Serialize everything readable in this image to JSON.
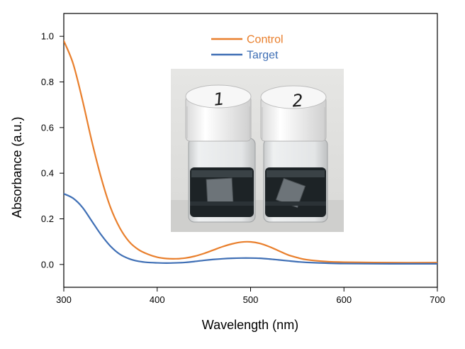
{
  "chart_data": {
    "type": "line",
    "xlabel": "Wavelength (nm)",
    "ylabel": "Absorbance (a.u.)",
    "xlim": [
      300,
      700
    ],
    "ylim": [
      -0.1,
      1.1
    ],
    "x_ticks": [
      "300",
      "400",
      "500",
      "600",
      "700"
    ],
    "y_ticks": [
      "0.0",
      "0.2",
      "0.4",
      "0.6",
      "0.8",
      "1.0"
    ],
    "grid": false,
    "legend_position": "top-center",
    "series": [
      {
        "name": "Control",
        "color": "#e97f2c",
        "x": [
          300,
          310,
          320,
          330,
          340,
          350,
          360,
          370,
          380,
          390,
          400,
          410,
          420,
          430,
          440,
          450,
          460,
          470,
          480,
          490,
          500,
          510,
          520,
          530,
          540,
          550,
          560,
          580,
          600,
          650,
          700
        ],
        "y": [
          0.98,
          0.88,
          0.72,
          0.54,
          0.38,
          0.25,
          0.16,
          0.1,
          0.065,
          0.045,
          0.032,
          0.026,
          0.025,
          0.028,
          0.036,
          0.048,
          0.063,
          0.078,
          0.09,
          0.098,
          0.099,
          0.092,
          0.078,
          0.06,
          0.042,
          0.03,
          0.021,
          0.013,
          0.01,
          0.008,
          0.008
        ]
      },
      {
        "name": "Target",
        "color": "#3f6fb5",
        "x": [
          300,
          310,
          320,
          330,
          340,
          350,
          360,
          370,
          380,
          390,
          400,
          410,
          420,
          430,
          440,
          450,
          460,
          470,
          480,
          490,
          500,
          510,
          520,
          530,
          540,
          550,
          560,
          580,
          600,
          650,
          700
        ],
        "y": [
          0.31,
          0.29,
          0.25,
          0.19,
          0.13,
          0.08,
          0.045,
          0.025,
          0.014,
          0.009,
          0.007,
          0.006,
          0.007,
          0.009,
          0.013,
          0.018,
          0.022,
          0.025,
          0.027,
          0.028,
          0.028,
          0.027,
          0.024,
          0.02,
          0.016,
          0.012,
          0.009,
          0.006,
          0.004,
          0.003,
          0.003
        ]
      }
    ]
  },
  "inset_photo": {
    "vial_labels": [
      "1",
      "2"
    ]
  }
}
